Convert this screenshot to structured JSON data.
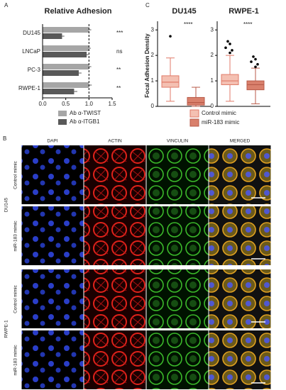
{
  "chart_data": [
    {
      "type": "hbar",
      "panel": "A",
      "title": "Relative Adhesion",
      "categories": [
        "DU145",
        "LNCaP",
        "PC-3",
        "RWPE-1"
      ],
      "series": [
        {
          "name": "Ab α-TWIST",
          "color": "#a6a6a6",
          "values": [
            1.0,
            1.0,
            1.0,
            1.0
          ],
          "errors": [
            0.05,
            0.04,
            0.05,
            0.06
          ]
        },
        {
          "name": "Ab α-ITGB1",
          "color": "#595959",
          "values": [
            0.42,
            0.95,
            0.78,
            0.68
          ],
          "errors": [
            0.05,
            0.04,
            0.06,
            0.07
          ]
        }
      ],
      "annotations": [
        "***",
        "ns",
        "**",
        "**"
      ],
      "xlim": [
        0,
        1.5
      ],
      "xticks": [
        {
          "value": 0,
          "label": "0.0"
        },
        {
          "value": 0.5,
          "label": "0.5"
        },
        {
          "value": 1,
          "label": "1.0"
        },
        {
          "value": 1.5,
          "label": "1.5"
        }
      ],
      "refline": 1
    },
    {
      "type": "box",
      "panel": "C",
      "ylabel": "Focal Adhesion Density",
      "groups": [
        "DU145",
        "RWPE-1"
      ],
      "annotations": [
        "****",
        "****"
      ],
      "ylim": [
        0,
        3.2
      ],
      "yticks": [
        0,
        1,
        2,
        3
      ],
      "series": [
        {
          "name": "Control mimic",
          "color": "#f4c0b2",
          "edge": "#e07a68",
          "stats": [
            {
              "low": 0.2,
              "q1": 0.75,
              "median": 0.95,
              "q3": 1.2,
              "high": 1.9,
              "fliers": [
                2.75
              ]
            },
            {
              "low": 0.2,
              "q1": 0.85,
              "median": 1.0,
              "q3": 1.25,
              "high": 2.0,
              "fliers": [
                2.1,
                2.2,
                2.3,
                2.45,
                2.55
              ]
            }
          ]
        },
        {
          "name": "miR-183 mimic",
          "color": "#d9806c",
          "edge": "#b85a48",
          "stats": [
            {
              "low": 0,
              "q1": 0.05,
              "median": 0.15,
              "q3": 0.35,
              "high": 0.75,
              "fliers": []
            },
            {
              "low": 0.1,
              "q1": 0.65,
              "median": 0.85,
              "q3": 1.0,
              "high": 1.5,
              "fliers": [
                1.55,
                1.65,
                1.75,
                1.85,
                1.95
              ]
            }
          ]
        }
      ]
    }
  ],
  "panel_b": {
    "label": "B",
    "columns": [
      "DAPI",
      "ACTIN",
      "VINCULIN",
      "MERGED"
    ],
    "rows": [
      "Control mimic",
      "miR-183 mimic",
      "Control mimic",
      "miR-183 mimic"
    ],
    "groups": [
      "DU145",
      "RWPE-1"
    ]
  }
}
